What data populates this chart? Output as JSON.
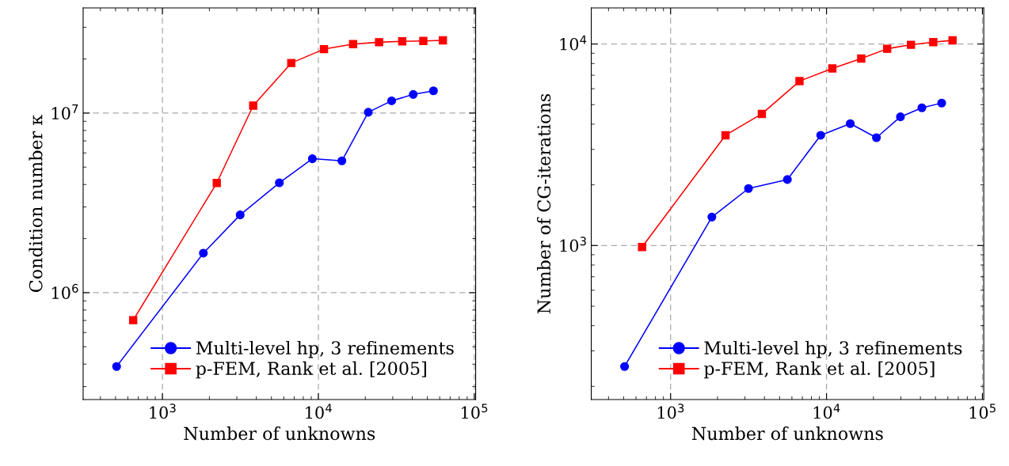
{
  "chart_data": [
    {
      "type": "line",
      "xlabel": "Number of unknowns",
      "ylabel": "Condition number κ",
      "log": "xy",
      "grid": true,
      "legend": "bottom right",
      "line_style": "solid",
      "xlim": [
        310,
        102000
      ],
      "ylim": [
        254000,
        38500000
      ],
      "xticks": [
        {
          "value": 1000,
          "label": "10$^{3}$"
        },
        {
          "value": 10000,
          "label": "10$^{4}$"
        },
        {
          "value": 100000,
          "label": "10$^{5}$"
        }
      ],
      "yticks": [
        {
          "value": 1000000,
          "label": "10$^{6}$"
        },
        {
          "value": 10000000,
          "label": "10$^{7}$"
        }
      ],
      "series": [
        {
          "name": "Multi-level hp, 3 refinements",
          "color": "#0000ff",
          "marker": "circle",
          "x": [
            508,
            1830,
            3150,
            5620,
            9150,
            14150,
            20900,
            29500,
            40600,
            54700
          ],
          "values": [
            388000,
            1660000,
            2710000,
            4090000,
            5570000,
            5420000,
            10100000,
            11700000,
            12700000,
            13300000
          ]
        },
        {
          "name": "p-FEM, Rank et al. [2005]",
          "color": "#ff0000",
          "marker": "square",
          "x": [
            649,
            2230,
            3820,
            6700,
            10860,
            16700,
            24500,
            34500,
            47100,
            62900
          ],
          "values": [
            703000,
            4080000,
            11000000,
            19000000,
            22700000,
            24200000,
            24800000,
            25100000,
            25200000,
            25400000
          ]
        }
      ]
    },
    {
      "type": "line",
      "xlabel": "Number of unknowns",
      "ylabel": "Number of CG-iterations",
      "log": "xy",
      "grid": true,
      "legend": "bottom right",
      "line_style": "solid",
      "xlim": [
        310,
        102000
      ],
      "ylim": [
        172,
        15100
      ],
      "xticks": [
        {
          "value": 1000,
          "label": "10$^{3}$"
        },
        {
          "value": 10000,
          "label": "10$^{4}$"
        },
        {
          "value": 100000,
          "label": "10$^{5}$"
        }
      ],
      "yticks": [
        {
          "value": 1000,
          "label": "10$^{3}$"
        },
        {
          "value": 10000,
          "label": "10$^{4}$"
        }
      ],
      "series": [
        {
          "name": "Multi-level hp, 3 refinements",
          "color": "#0000ff",
          "marker": "circle",
          "x": [
            507,
            1840,
            3160,
            5610,
            9180,
            14200,
            20900,
            29800,
            40900,
            54800
          ],
          "values": [
            251,
            1384,
            1918,
            2125,
            3525,
            4025,
            3430,
            4350,
            4825,
            5090
          ]
        },
        {
          "name": "p-FEM, Rank et al. [2005]",
          "color": "#ff0000",
          "marker": "square",
          "x": [
            656,
            2250,
            3850,
            6710,
            10900,
            16700,
            24500,
            34800,
            48400,
            64300
          ],
          "values": [
            982,
            3525,
            4500,
            6540,
            7560,
            8470,
            9470,
            9910,
            10210,
            10430
          ]
        }
      ]
    }
  ]
}
